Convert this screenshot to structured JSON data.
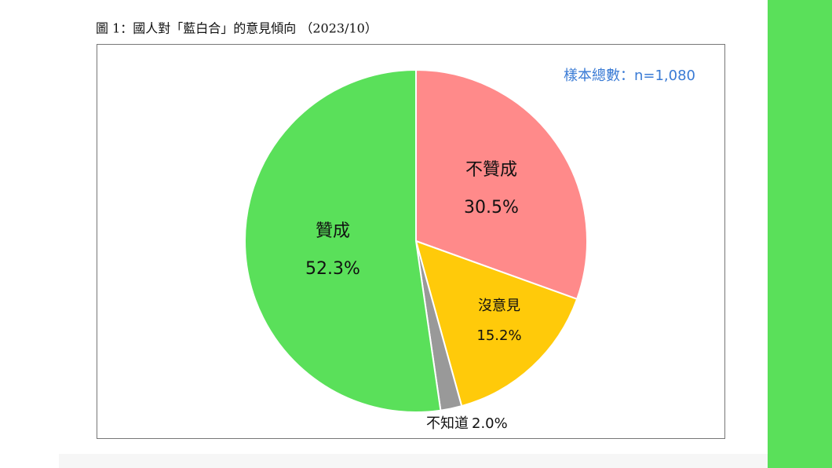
{
  "chart_data": {
    "type": "pie",
    "title": "圖 1：國人對「藍白合」的意見傾向 （2023/10）",
    "annotation": "樣本總數：n=1,080",
    "categories": [
      "不贊成",
      "沒意見",
      "不知道",
      "贊成"
    ],
    "values": [
      30.5,
      15.2,
      2.0,
      52.3
    ],
    "value_labels": [
      "30.5%",
      "15.2%",
      "2.0%",
      "52.3%"
    ],
    "colors": [
      "#ff8a8a",
      "#ffca0a",
      "#999999",
      "#5ae05a"
    ]
  }
}
